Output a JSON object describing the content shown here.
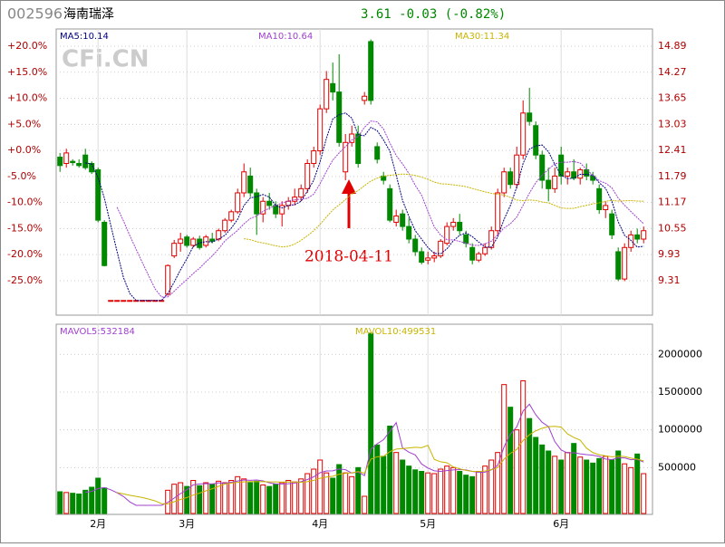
{
  "header": {
    "code": "002596",
    "name": "海南瑞泽",
    "quote": "3.61 -0.03 (-0.82%)",
    "watermark": "CFi.CN",
    "annotation": "2018-04-11"
  },
  "chart_data": [
    {
      "type": "candlestick",
      "up_color": "#e00000",
      "down_color": "#008800",
      "grid": true,
      "ylim": [
        8.49,
        15.3
      ],
      "yticks": [
        9.31,
        9.93,
        10.55,
        11.17,
        11.79,
        12.41,
        13.03,
        13.65,
        14.27,
        14.89
      ],
      "y2lim": [
        -31.6,
        23.3
      ],
      "y2ticks": [
        {
          "value": 20,
          "label": "+20.0%"
        },
        {
          "value": 15,
          "label": "+15.0%"
        },
        {
          "value": 10,
          "label": "+10.0%"
        },
        {
          "value": 5,
          "label": "+5.0%"
        },
        {
          "value": 0,
          "label": "+0.0%"
        },
        {
          "value": -5,
          "label": "-5.0%"
        },
        {
          "value": -10,
          "label": "-10.0%"
        },
        {
          "value": -15,
          "label": "-15.0%"
        },
        {
          "value": -20,
          "label": "-20.0%"
        },
        {
          "value": -25,
          "label": "-25.0%"
        }
      ],
      "xlim": [
        -0.6,
        93.4
      ],
      "xticks": [
        {
          "value": 6,
          "label": "2月"
        },
        {
          "value": 20,
          "label": "3月"
        },
        {
          "value": 41,
          "label": "4月"
        },
        {
          "value": 58,
          "label": "5月"
        },
        {
          "value": 79,
          "label": "6月"
        }
      ],
      "ma": [
        {
          "label": "MA5:10.14",
          "period": 5,
          "color": "#000080"
        },
        {
          "label": "MA10:10.64",
          "period": 10,
          "color": "#a040d0"
        },
        {
          "label": "MA30:11.34",
          "period": 30,
          "color": "#c8b400"
        }
      ],
      "open": [
        12.25,
        12.1,
        12.15,
        12.1,
        12.3,
        12.1,
        11.95,
        10.7,
        8.84,
        8.84,
        8.84,
        8.84,
        8.84,
        8.84,
        8.84,
        8.84,
        8.84,
        8.99,
        9.9,
        10.2,
        10.35,
        10.15,
        10.3,
        10.15,
        10.3,
        10.3,
        10.5,
        10.75,
        10.95,
        11.4,
        11.8,
        11.4,
        10.9,
        11.2,
        11.1,
        10.9,
        11.1,
        11.2,
        11.3,
        11.5,
        12.1,
        12.4,
        13.4,
        14.0,
        13.8,
        11.9,
        12.6,
        12.8,
        13.6,
        15.0,
        12.5,
        11.8,
        11.5,
        10.7,
        10.9,
        10.6,
        10.3,
        10.0,
        9.8,
        9.85,
        9.9,
        10.2,
        10.6,
        10.7,
        10.4,
        10.1,
        9.8,
        9.95,
        10.1,
        10.5,
        11.4,
        11.9,
        11.6,
        12.3,
        13.3,
        13.0,
        12.3,
        11.7,
        11.5,
        12.3,
        11.8,
        11.9,
        11.75,
        11.95,
        11.8,
        11.5,
        11.0,
        10.9,
        10.0,
        9.35,
        10.1,
        10.4,
        10.3
      ],
      "high": [
        12.35,
        12.45,
        12.2,
        12.2,
        12.45,
        12.15,
        12.0,
        10.75,
        8.84,
        8.84,
        8.84,
        8.84,
        8.84,
        8.84,
        8.84,
        8.84,
        8.84,
        9.7,
        10.28,
        10.45,
        10.4,
        10.35,
        10.38,
        10.4,
        10.45,
        10.55,
        10.8,
        11.0,
        11.5,
        12.1,
        12.0,
        11.5,
        11.3,
        11.4,
        11.2,
        11.2,
        11.3,
        11.5,
        11.6,
        12.2,
        12.5,
        13.5,
        14.3,
        14.5,
        14.7,
        12.8,
        13.0,
        13.0,
        13.8,
        15.05,
        12.6,
        11.9,
        11.6,
        11.0,
        11.0,
        10.8,
        10.4,
        10.1,
        10.0,
        10.0,
        10.3,
        10.7,
        10.8,
        10.9,
        10.5,
        10.2,
        10.0,
        10.2,
        10.6,
        11.5,
        12.0,
        12.0,
        12.5,
        13.6,
        13.9,
        13.1,
        12.4,
        12.0,
        12.0,
        12.5,
        12.0,
        12.2,
        12.0,
        12.1,
        11.9,
        11.6,
        11.2,
        11.0,
        10.1,
        10.2,
        10.5,
        10.55,
        10.6
      ],
      "low": [
        11.9,
        12.0,
        12.05,
        12.0,
        11.95,
        11.85,
        10.7,
        9.65,
        8.84,
        8.84,
        8.84,
        8.84,
        8.84,
        8.84,
        8.84,
        8.84,
        8.84,
        8.95,
        9.85,
        10.0,
        10.1,
        10.1,
        10.05,
        10.1,
        10.2,
        10.25,
        10.45,
        10.7,
        10.9,
        11.3,
        11.3,
        10.4,
        10.7,
        11.0,
        10.8,
        10.6,
        11.0,
        11.1,
        11.2,
        11.4,
        12.0,
        12.3,
        13.3,
        13.6,
        12.5,
        11.7,
        12.5,
        12.0,
        13.5,
        13.5,
        12.1,
        11.6,
        10.7,
        10.6,
        10.5,
        10.2,
        9.9,
        9.7,
        9.7,
        9.75,
        9.85,
        10.15,
        10.5,
        10.4,
        10.1,
        9.7,
        9.75,
        9.9,
        10.05,
        10.4,
        11.3,
        11.5,
        11.5,
        12.2,
        13.0,
        12.2,
        11.5,
        11.2,
        11.4,
        11.6,
        11.6,
        11.7,
        11.6,
        11.7,
        11.6,
        10.9,
        10.8,
        10.3,
        9.3,
        9.3,
        10.0,
        10.2,
        10.2
      ],
      "close": [
        12.05,
        12.35,
        12.12,
        12.05,
        12.0,
        11.9,
        10.75,
        9.67,
        8.84,
        8.84,
        8.84,
        8.84,
        8.84,
        8.84,
        8.84,
        8.84,
        8.84,
        9.67,
        10.2,
        10.3,
        10.15,
        10.3,
        10.1,
        10.35,
        10.25,
        10.5,
        10.75,
        10.95,
        11.4,
        11.9,
        11.4,
        10.9,
        11.2,
        11.1,
        10.9,
        11.1,
        11.2,
        11.3,
        11.5,
        12.1,
        12.4,
        13.4,
        14.1,
        13.8,
        12.6,
        12.6,
        12.8,
        12.1,
        13.7,
        13.6,
        12.2,
        11.7,
        10.75,
        10.85,
        10.6,
        10.3,
        10.0,
        9.75,
        9.85,
        9.9,
        10.25,
        10.6,
        10.7,
        10.5,
        10.2,
        9.8,
        9.95,
        10.1,
        10.5,
        11.4,
        11.9,
        11.6,
        12.3,
        13.3,
        13.1,
        12.3,
        11.7,
        11.5,
        11.8,
        11.8,
        11.9,
        11.75,
        11.95,
        11.8,
        11.7,
        11.0,
        11.1,
        10.4,
        9.35,
        10.1,
        10.4,
        10.3,
        10.5
      ]
    },
    {
      "type": "volume",
      "grid": true,
      "ylim": [
        -120000,
        2400000
      ],
      "yticks": [
        500000,
        1000000,
        1500000,
        2000000
      ],
      "ma": [
        {
          "label": "MAVOL5:532184",
          "period": 5,
          "color": "#a040d0"
        },
        {
          "label": "MAVOL10:499531",
          "period": 10,
          "color": "#c8b400"
        }
      ],
      "values": [
        180000,
        170000,
        160000,
        150000,
        200000,
        240000,
        360000,
        230000,
        0,
        0,
        0,
        0,
        0,
        0,
        0,
        0,
        0,
        200000,
        280000,
        300000,
        250000,
        330000,
        260000,
        300000,
        280000,
        320000,
        300000,
        330000,
        380000,
        350000,
        300000,
        320000,
        270000,
        250000,
        280000,
        300000,
        330000,
        310000,
        350000,
        420000,
        480000,
        600000,
        430000,
        360000,
        540000,
        430000,
        380000,
        500000,
        120000,
        2280000,
        800000,
        650000,
        1050000,
        700000,
        600000,
        520000,
        470000,
        450000,
        430000,
        420000,
        480000,
        520000,
        500000,
        450000,
        400000,
        380000,
        450000,
        520000,
        600000,
        700000,
        1600000,
        1300000,
        1000000,
        1650000,
        1150000,
        900000,
        800000,
        720000,
        650000,
        600000,
        700000,
        820000,
        640000,
        600000,
        560000,
        620000,
        650000,
        600000,
        720000,
        550000,
        500000,
        680000,
        420000
      ]
    }
  ]
}
